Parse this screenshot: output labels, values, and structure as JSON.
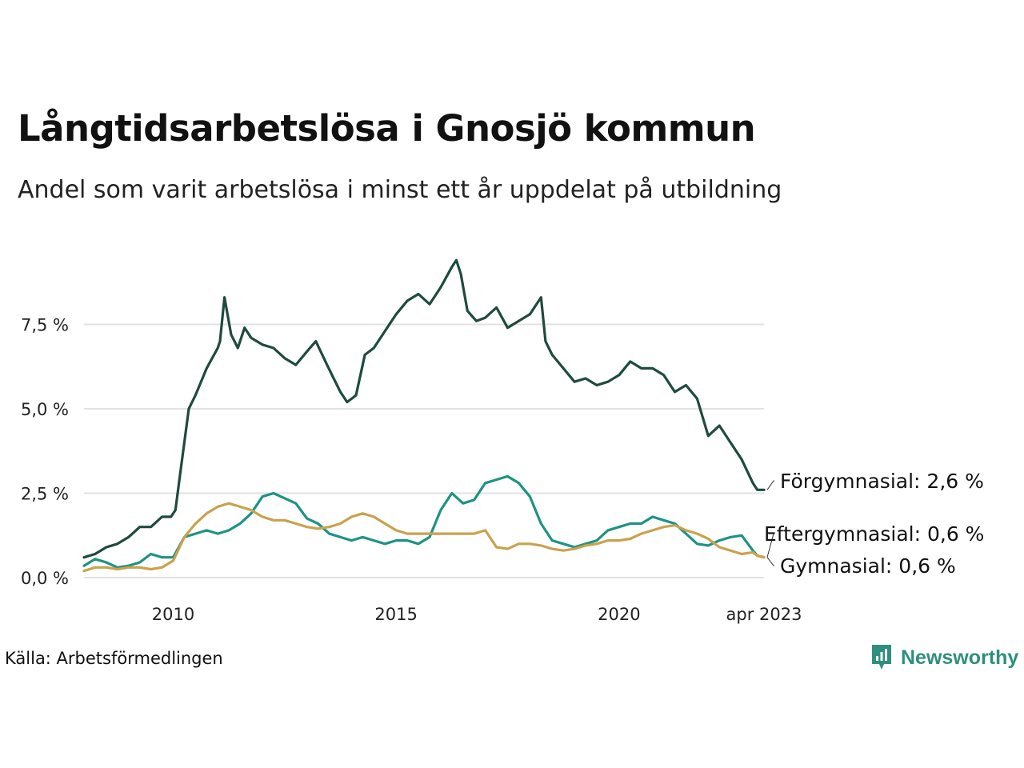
{
  "title": "Långtidsarbetslösa i Gnosjö kommun",
  "subtitle": "Andel som varit arbetslösa i minst ett år uppdelat på utbildning",
  "source": "Källa: Arbetsförmedlingen",
  "brand": "Newsworthy",
  "chart_data": {
    "type": "line",
    "title": "Långtidsarbetslösa i Gnosjö kommun",
    "subtitle": "Andel som varit arbetslösa i minst ett år uppdelat på utbildning",
    "ylim": [
      0,
      10
    ],
    "xlim": [
      2008.0,
      2023.25
    ],
    "x_ticks": [
      {
        "value": 2010,
        "label": "2010"
      },
      {
        "value": 2015,
        "label": "2015"
      },
      {
        "value": 2020,
        "label": "2020"
      },
      {
        "value": 2023.25,
        "label": "apr 2023"
      }
    ],
    "y_ticks": [
      {
        "value": 0,
        "label": "0,0 %"
      },
      {
        "value": 2.5,
        "label": "2,5 %"
      },
      {
        "value": 5,
        "label": "5,0 %"
      },
      {
        "value": 7.5,
        "label": "7,5 %"
      }
    ],
    "grid": true,
    "legend": "end-of-line labels",
    "series": [
      {
        "name": "Förgymnasial",
        "end_label": "Förgymnasial: 2,6 %",
        "color": "#1f4a3f",
        "points": [
          [
            2008.0,
            0.6
          ],
          [
            2008.25,
            0.7
          ],
          [
            2008.5,
            0.9
          ],
          [
            2008.75,
            1.0
          ],
          [
            2009.0,
            1.2
          ],
          [
            2009.25,
            1.5
          ],
          [
            2009.5,
            1.5
          ],
          [
            2009.75,
            1.8
          ],
          [
            2009.95,
            1.8
          ],
          [
            2010.05,
            2.0
          ],
          [
            2010.15,
            3.0
          ],
          [
            2010.25,
            4.0
          ],
          [
            2010.35,
            5.0
          ],
          [
            2010.5,
            5.4
          ],
          [
            2010.75,
            6.2
          ],
          [
            2011.0,
            6.8
          ],
          [
            2011.05,
            7.0
          ],
          [
            2011.15,
            8.3
          ],
          [
            2011.3,
            7.2
          ],
          [
            2011.45,
            6.8
          ],
          [
            2011.6,
            7.4
          ],
          [
            2011.75,
            7.1
          ],
          [
            2012.0,
            6.9
          ],
          [
            2012.25,
            6.8
          ],
          [
            2012.5,
            6.5
          ],
          [
            2012.75,
            6.3
          ],
          [
            2013.0,
            6.7
          ],
          [
            2013.2,
            7.0
          ],
          [
            2013.45,
            6.3
          ],
          [
            2013.6,
            5.9
          ],
          [
            2013.75,
            5.5
          ],
          [
            2013.9,
            5.2
          ],
          [
            2014.1,
            5.4
          ],
          [
            2014.3,
            6.6
          ],
          [
            2014.5,
            6.8
          ],
          [
            2014.75,
            7.3
          ],
          [
            2015.0,
            7.8
          ],
          [
            2015.25,
            8.2
          ],
          [
            2015.5,
            8.4
          ],
          [
            2015.75,
            8.1
          ],
          [
            2016.0,
            8.6
          ],
          [
            2016.25,
            9.2
          ],
          [
            2016.35,
            9.4
          ],
          [
            2016.45,
            9.0
          ],
          [
            2016.6,
            7.9
          ],
          [
            2016.8,
            7.6
          ],
          [
            2017.0,
            7.7
          ],
          [
            2017.25,
            8.0
          ],
          [
            2017.5,
            7.4
          ],
          [
            2017.75,
            7.6
          ],
          [
            2018.0,
            7.8
          ],
          [
            2018.25,
            8.3
          ],
          [
            2018.35,
            7.0
          ],
          [
            2018.5,
            6.6
          ],
          [
            2018.75,
            6.2
          ],
          [
            2019.0,
            5.8
          ],
          [
            2019.25,
            5.9
          ],
          [
            2019.5,
            5.7
          ],
          [
            2019.75,
            5.8
          ],
          [
            2020.0,
            6.0
          ],
          [
            2020.25,
            6.4
          ],
          [
            2020.5,
            6.2
          ],
          [
            2020.75,
            6.2
          ],
          [
            2021.0,
            6.0
          ],
          [
            2021.25,
            5.5
          ],
          [
            2021.5,
            5.7
          ],
          [
            2021.75,
            5.3
          ],
          [
            2022.0,
            4.2
          ],
          [
            2022.25,
            4.5
          ],
          [
            2022.5,
            4.0
          ],
          [
            2022.75,
            3.5
          ],
          [
            2023.0,
            2.8
          ],
          [
            2023.1,
            2.6
          ],
          [
            2023.25,
            2.6
          ]
        ]
      },
      {
        "name": "Eftergymnasial",
        "end_label": "Eftergymnasial: 0,6 %",
        "color": "#1d9384",
        "points": [
          [
            2008.0,
            0.35
          ],
          [
            2008.25,
            0.55
          ],
          [
            2008.5,
            0.45
          ],
          [
            2008.75,
            0.3
          ],
          [
            2009.0,
            0.35
          ],
          [
            2009.25,
            0.45
          ],
          [
            2009.5,
            0.7
          ],
          [
            2009.75,
            0.6
          ],
          [
            2010.0,
            0.6
          ],
          [
            2010.25,
            1.2
          ],
          [
            2010.5,
            1.3
          ],
          [
            2010.75,
            1.4
          ],
          [
            2011.0,
            1.3
          ],
          [
            2011.25,
            1.4
          ],
          [
            2011.5,
            1.6
          ],
          [
            2011.75,
            1.9
          ],
          [
            2012.0,
            2.4
          ],
          [
            2012.25,
            2.5
          ],
          [
            2012.5,
            2.35
          ],
          [
            2012.75,
            2.2
          ],
          [
            2013.0,
            1.75
          ],
          [
            2013.25,
            1.6
          ],
          [
            2013.5,
            1.3
          ],
          [
            2013.75,
            1.2
          ],
          [
            2014.0,
            1.1
          ],
          [
            2014.25,
            1.2
          ],
          [
            2014.5,
            1.1
          ],
          [
            2014.75,
            1.0
          ],
          [
            2015.0,
            1.1
          ],
          [
            2015.25,
            1.1
          ],
          [
            2015.5,
            1.0
          ],
          [
            2015.75,
            1.2
          ],
          [
            2016.0,
            2.0
          ],
          [
            2016.25,
            2.5
          ],
          [
            2016.5,
            2.2
          ],
          [
            2016.75,
            2.3
          ],
          [
            2017.0,
            2.8
          ],
          [
            2017.25,
            2.9
          ],
          [
            2017.5,
            3.0
          ],
          [
            2017.75,
            2.8
          ],
          [
            2018.0,
            2.4
          ],
          [
            2018.25,
            1.6
          ],
          [
            2018.5,
            1.1
          ],
          [
            2018.75,
            1.0
          ],
          [
            2019.0,
            0.9
          ],
          [
            2019.25,
            1.0
          ],
          [
            2019.5,
            1.1
          ],
          [
            2019.75,
            1.4
          ],
          [
            2020.0,
            1.5
          ],
          [
            2020.25,
            1.6
          ],
          [
            2020.5,
            1.6
          ],
          [
            2020.75,
            1.8
          ],
          [
            2021.0,
            1.7
          ],
          [
            2021.25,
            1.6
          ],
          [
            2021.5,
            1.3
          ],
          [
            2021.75,
            1.0
          ],
          [
            2022.0,
            0.95
          ],
          [
            2022.25,
            1.1
          ],
          [
            2022.5,
            1.2
          ],
          [
            2022.75,
            1.25
          ],
          [
            2023.0,
            0.8
          ],
          [
            2023.1,
            0.65
          ],
          [
            2023.25,
            0.6
          ]
        ]
      },
      {
        "name": "Gymnasial",
        "end_label": "Gymnasial: 0,6 %",
        "color": "#c9a24e",
        "points": [
          [
            2008.0,
            0.2
          ],
          [
            2008.25,
            0.3
          ],
          [
            2008.5,
            0.3
          ],
          [
            2008.75,
            0.25
          ],
          [
            2009.0,
            0.3
          ],
          [
            2009.25,
            0.3
          ],
          [
            2009.5,
            0.25
          ],
          [
            2009.75,
            0.3
          ],
          [
            2010.0,
            0.5
          ],
          [
            2010.25,
            1.2
          ],
          [
            2010.5,
            1.6
          ],
          [
            2010.75,
            1.9
          ],
          [
            2011.0,
            2.1
          ],
          [
            2011.25,
            2.2
          ],
          [
            2011.5,
            2.1
          ],
          [
            2011.75,
            2.0
          ],
          [
            2012.0,
            1.8
          ],
          [
            2012.25,
            1.7
          ],
          [
            2012.5,
            1.7
          ],
          [
            2012.75,
            1.6
          ],
          [
            2013.0,
            1.5
          ],
          [
            2013.25,
            1.45
          ],
          [
            2013.5,
            1.5
          ],
          [
            2013.75,
            1.6
          ],
          [
            2014.0,
            1.8
          ],
          [
            2014.25,
            1.9
          ],
          [
            2014.5,
            1.8
          ],
          [
            2014.75,
            1.6
          ],
          [
            2015.0,
            1.4
          ],
          [
            2015.25,
            1.3
          ],
          [
            2015.5,
            1.3
          ],
          [
            2015.75,
            1.3
          ],
          [
            2016.0,
            1.3
          ],
          [
            2016.25,
            1.3
          ],
          [
            2016.5,
            1.3
          ],
          [
            2016.75,
            1.3
          ],
          [
            2017.0,
            1.4
          ],
          [
            2017.25,
            0.9
          ],
          [
            2017.5,
            0.85
          ],
          [
            2017.75,
            1.0
          ],
          [
            2018.0,
            1.0
          ],
          [
            2018.25,
            0.95
          ],
          [
            2018.5,
            0.85
          ],
          [
            2018.75,
            0.8
          ],
          [
            2019.0,
            0.85
          ],
          [
            2019.25,
            0.95
          ],
          [
            2019.5,
            1.0
          ],
          [
            2019.75,
            1.1
          ],
          [
            2020.0,
            1.1
          ],
          [
            2020.25,
            1.15
          ],
          [
            2020.5,
            1.3
          ],
          [
            2020.75,
            1.4
          ],
          [
            2021.0,
            1.5
          ],
          [
            2021.25,
            1.55
          ],
          [
            2021.5,
            1.4
          ],
          [
            2021.75,
            1.3
          ],
          [
            2022.0,
            1.15
          ],
          [
            2022.25,
            0.9
          ],
          [
            2022.5,
            0.8
          ],
          [
            2022.75,
            0.7
          ],
          [
            2023.0,
            0.75
          ],
          [
            2023.1,
            0.65
          ],
          [
            2023.25,
            0.6
          ]
        ]
      }
    ]
  }
}
